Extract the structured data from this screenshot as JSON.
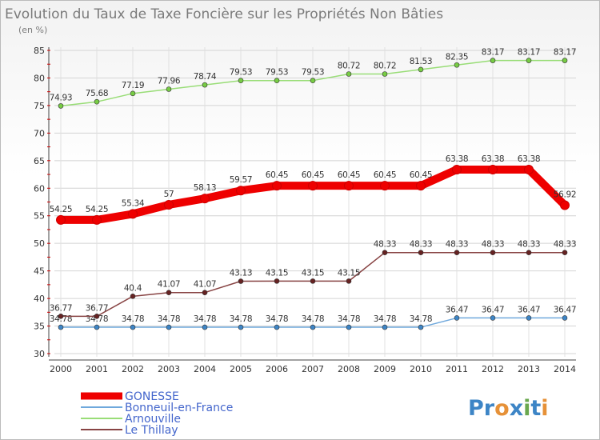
{
  "chart_data": {
    "type": "line",
    "title": "Evolution du Taux de Taxe Foncière sur les Propriétés Non Bâties",
    "ylabel": "(en %)",
    "xlabel": "",
    "ylim": [
      30,
      85
    ],
    "yticks": [
      30,
      35,
      40,
      45,
      50,
      55,
      60,
      65,
      70,
      75,
      80,
      85
    ],
    "grid": true,
    "categories": [
      "2000",
      "2001",
      "2002",
      "2003",
      "2004",
      "2005",
      "2006",
      "2007",
      "2008",
      "2009",
      "2010",
      "2011",
      "2012",
      "2013",
      "2014"
    ],
    "series": [
      {
        "name": "GONESSE",
        "color": "#ee0000",
        "marker": "#ee0000",
        "thick": true,
        "values": [
          54.25,
          54.25,
          55.34,
          57,
          58.13,
          59.57,
          60.45,
          60.45,
          60.45,
          60.45,
          60.45,
          63.38,
          63.38,
          63.38,
          56.92
        ],
        "labels": [
          "54.25",
          "54.25",
          "55.34",
          "57",
          "58.13",
          "59.57",
          "60.45",
          "60.45",
          "60.45",
          "60.45",
          "60.45",
          "63.38",
          "63.38",
          "63.38",
          "56.92"
        ]
      },
      {
        "name": "Bonneuil-en-France",
        "color": "#6fa8dc",
        "marker": "#3d85c6",
        "thick": false,
        "values": [
          34.78,
          34.78,
          34.78,
          34.78,
          34.78,
          34.78,
          34.78,
          34.78,
          34.78,
          34.78,
          34.78,
          36.47,
          36.47,
          36.47,
          36.47
        ],
        "labels": [
          "34.78",
          "34.78",
          "34.78",
          "34.78",
          "34.78",
          "34.78",
          "34.78",
          "34.78",
          "34.78",
          "34.78",
          "34.78",
          "36.47",
          "36.47",
          "36.47",
          "36.47"
        ]
      },
      {
        "name": "Arnouville",
        "color": "#99dd77",
        "marker": "#77cc44",
        "thick": false,
        "values": [
          74.93,
          75.68,
          77.19,
          77.96,
          78.74,
          79.53,
          79.53,
          79.53,
          80.72,
          80.72,
          81.53,
          82.35,
          83.17,
          83.17,
          83.17
        ],
        "labels": [
          "74.93",
          "75.68",
          "77.19",
          "77.96",
          "78.74",
          "79.53",
          "79.53",
          "79.53",
          "80.72",
          "80.72",
          "81.53",
          "82.35",
          "83.17",
          "83.17",
          "83.17"
        ]
      },
      {
        "name": "Le Thillay",
        "color": "#884444",
        "marker": "#662222",
        "thick": false,
        "values": [
          36.77,
          36.77,
          40.4,
          41.07,
          41.07,
          43.13,
          43.15,
          43.15,
          43.15,
          48.33,
          48.33,
          48.33,
          48.33,
          48.33,
          48.33
        ],
        "labels": [
          "36.77",
          "36.77",
          "40.4",
          "41.07",
          "41.07",
          "43.13",
          "43.15",
          "43.15",
          "43.15",
          "48.33",
          "48.33",
          "48.33",
          "48.33",
          "48.33",
          "48.33"
        ]
      }
    ]
  },
  "brand": {
    "text": "Proxiti",
    "chars": [
      "P",
      "r",
      "o",
      "x",
      "i",
      "t",
      "i"
    ],
    "colors": [
      "#3d85c6",
      "#3d85c6",
      "#e69138",
      "#3d85c6",
      "#6aa84f",
      "#3d85c6",
      "#e69138"
    ]
  }
}
